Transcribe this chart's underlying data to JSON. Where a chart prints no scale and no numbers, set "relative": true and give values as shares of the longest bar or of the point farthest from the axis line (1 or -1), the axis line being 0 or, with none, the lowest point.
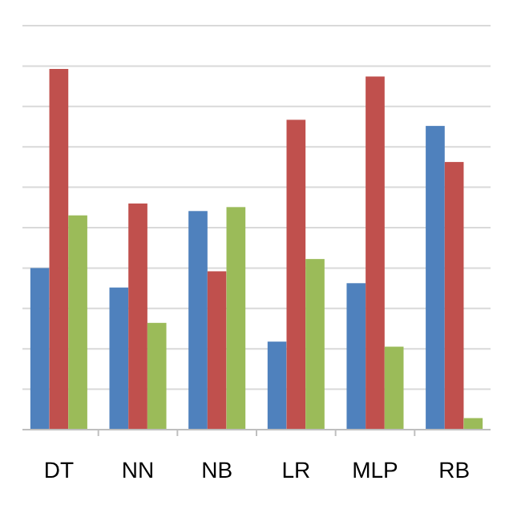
{
  "chart_data": {
    "type": "bar",
    "relative": true,
    "grid": true,
    "categories": [
      "DT",
      "NN",
      "NB",
      "LR",
      "MLP",
      "RB"
    ],
    "series": [
      {
        "color": "#4f81bd",
        "values": [
          0.448,
          0.394,
          0.606,
          0.244,
          0.406,
          0.842
        ]
      },
      {
        "color": "#c0504d",
        "values": [
          1,
          0.627,
          0.439,
          0.859,
          0.979,
          0.742
        ]
      },
      {
        "color": "#9bbb59",
        "values": [
          0.594,
          0.296,
          0.617,
          0.473,
          0.23,
          0.032
        ]
      }
    ]
  }
}
